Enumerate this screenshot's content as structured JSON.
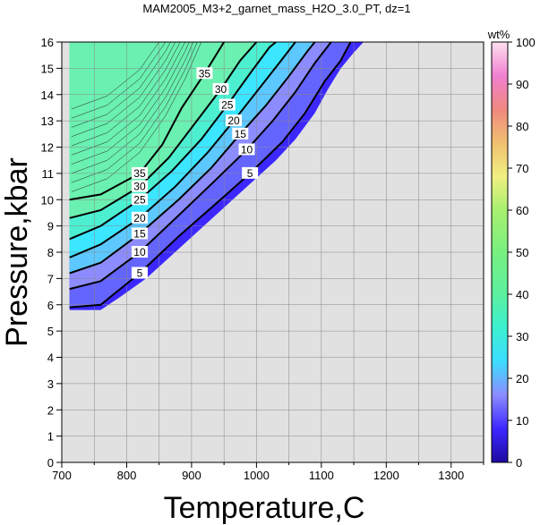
{
  "chart_data": {
    "type": "heatmap",
    "title": "MAM2005_M3+2_garnet_mass_H2O_3.0_PT, dz=1",
    "xlabel": "Temperature,C",
    "ylabel": "Pressure,kbar",
    "xlim": [
      700,
      1350
    ],
    "ylim": [
      0,
      16
    ],
    "xticks": [
      "700",
      "800",
      "900",
      "1000",
      "1100",
      "1200",
      "1300"
    ],
    "yticks": [
      "0",
      "1",
      "2",
      "3",
      "4",
      "5",
      "6",
      "7",
      "8",
      "9",
      "10",
      "11",
      "12",
      "13",
      "14",
      "15",
      "16"
    ],
    "grid": true,
    "colorbar": {
      "label": "wt%",
      "range": [
        0,
        100
      ],
      "ticks": [
        "0",
        "10",
        "20",
        "30",
        "40",
        "50",
        "60",
        "70",
        "80",
        "90",
        "100"
      ]
    },
    "contour_levels": [
      5,
      10,
      15,
      20,
      25,
      30,
      35
    ],
    "contours": [
      {
        "level": 5,
        "label": "5",
        "points": [
          [
            712,
            5.9
          ],
          [
            760,
            6.0
          ],
          [
            820,
            7.2
          ],
          [
            880,
            8.6
          ],
          [
            940,
            9.9
          ],
          [
            990,
            11.0
          ],
          [
            1040,
            12.2
          ],
          [
            1075,
            13.3
          ],
          [
            1105,
            14.5
          ],
          [
            1130,
            15.3
          ],
          [
            1145,
            16.0
          ]
        ]
      },
      {
        "level": 10,
        "label": "10",
        "points": [
          [
            712,
            6.6
          ],
          [
            760,
            6.9
          ],
          [
            820,
            8.0
          ],
          [
            880,
            9.4
          ],
          [
            935,
            10.7
          ],
          [
            985,
            11.9
          ],
          [
            1025,
            13.0
          ],
          [
            1060,
            14.1
          ],
          [
            1090,
            15.2
          ],
          [
            1115,
            16.0
          ]
        ]
      },
      {
        "level": 15,
        "label": "15",
        "points": [
          [
            712,
            7.2
          ],
          [
            760,
            7.6
          ],
          [
            820,
            8.7
          ],
          [
            880,
            10.0
          ],
          [
            930,
            11.2
          ],
          [
            975,
            12.5
          ],
          [
            1015,
            13.6
          ],
          [
            1050,
            14.7
          ],
          [
            1080,
            15.7
          ],
          [
            1090,
            16.0
          ]
        ]
      },
      {
        "level": 20,
        "label": "20",
        "points": [
          [
            712,
            7.8
          ],
          [
            760,
            8.3
          ],
          [
            820,
            9.3
          ],
          [
            875,
            10.5
          ],
          [
            925,
            11.8
          ],
          [
            965,
            13.0
          ],
          [
            1000,
            14.1
          ],
          [
            1035,
            15.2
          ],
          [
            1060,
            16.0
          ]
        ]
      },
      {
        "level": 25,
        "label": "25",
        "points": [
          [
            712,
            8.5
          ],
          [
            760,
            9.0
          ],
          [
            820,
            10.0
          ],
          [
            870,
            11.1
          ],
          [
            915,
            12.3
          ],
          [
            955,
            13.6
          ],
          [
            990,
            14.8
          ],
          [
            1020,
            15.8
          ],
          [
            1030,
            16.0
          ]
        ]
      },
      {
        "level": 30,
        "label": "30",
        "points": [
          [
            712,
            9.3
          ],
          [
            760,
            9.6
          ],
          [
            820,
            10.5
          ],
          [
            865,
            11.6
          ],
          [
            905,
            12.9
          ],
          [
            945,
            14.2
          ],
          [
            975,
            15.3
          ],
          [
            1000,
            16.0
          ]
        ]
      },
      {
        "level": 35,
        "label": "35",
        "points": [
          [
            712,
            10.0
          ],
          [
            760,
            10.2
          ],
          [
            820,
            11.0
          ],
          [
            855,
            12.1
          ],
          [
            885,
            13.5
          ],
          [
            920,
            14.8
          ],
          [
            950,
            16.0
          ]
        ]
      }
    ],
    "stable_field_boundary": [
      [
        712,
        5.8
      ],
      [
        760,
        5.8
      ],
      [
        790,
        6.3
      ],
      [
        830,
        7.0
      ],
      [
        870,
        7.9
      ],
      [
        910,
        8.8
      ],
      [
        950,
        9.7
      ],
      [
        990,
        10.6
      ],
      [
        1030,
        11.5
      ],
      [
        1060,
        12.3
      ],
      [
        1090,
        13.3
      ],
      [
        1110,
        14.2
      ],
      [
        1130,
        15.0
      ],
      [
        1150,
        15.6
      ],
      [
        1165,
        16.0
      ]
    ]
  }
}
